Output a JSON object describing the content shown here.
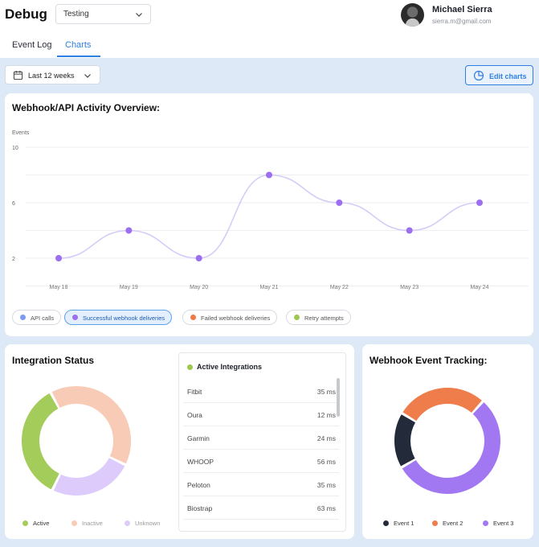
{
  "header": {
    "app_title": "Debug",
    "environment": "Testing",
    "user": {
      "name": "Michael Sierra",
      "email": "sierra.m@gmail.com"
    }
  },
  "tabs": [
    {
      "label": "Event Log",
      "active": false
    },
    {
      "label": "Charts",
      "active": true
    }
  ],
  "toolbar": {
    "date_range": "Last 12 weeks",
    "edit_charts_label": "Edit charts"
  },
  "activity_card": {
    "title": "Webhook/API Activity Overview:",
    "legend": [
      {
        "label": "API calls",
        "color": "#7c9cf0",
        "active": false
      },
      {
        "label": "Successful webhook deliveries",
        "color": "#9b6ff0",
        "active": true
      },
      {
        "label": "Failed webhook deliveries",
        "color": "#ef7a45",
        "active": false
      },
      {
        "label": "Retry attempts",
        "color": "#9bc84d",
        "active": false
      }
    ]
  },
  "integration_status": {
    "title": "Integration Status",
    "segments": [
      {
        "label": "Active",
        "value": 35,
        "color": "#a3cc5a"
      },
      {
        "label": "Inactive",
        "value": 40,
        "color": "#f7cbb6"
      },
      {
        "label": "Unknown",
        "value": 25,
        "color": "#dccbfb"
      }
    ],
    "active_integrations": {
      "header": "Active Integrations",
      "rows": [
        {
          "name": "Fitbit",
          "latency": "35 ms"
        },
        {
          "name": "Oura",
          "latency": "12 ms"
        },
        {
          "name": "Garmin",
          "latency": "24 ms"
        },
        {
          "name": "WHOOP",
          "latency": "56 ms"
        },
        {
          "name": "Peloton",
          "latency": "35 ms"
        },
        {
          "name": "Biostrap",
          "latency": "63 ms"
        }
      ]
    }
  },
  "event_tracking": {
    "title": "Webhook Event Tracking:",
    "segments": [
      {
        "label": "Event 1",
        "value": 17,
        "color": "#232a3a"
      },
      {
        "label": "Event 2",
        "value": 28,
        "color": "#ee7d4b"
      },
      {
        "label": "Event 3",
        "value": 55,
        "color": "#a277f2"
      }
    ]
  },
  "chart_data": {
    "type": "line",
    "title": "Webhook/API Activity Overview:",
    "ylabel": "Events",
    "xlabel": "",
    "categories": [
      "May 18",
      "May 19",
      "May 20",
      "May 21",
      "May 22",
      "May 23",
      "May 24"
    ],
    "y_ticks": [
      2,
      6,
      10
    ],
    "ylim": [
      0,
      10
    ],
    "grid": true,
    "series": [
      {
        "name": "Successful webhook deliveries",
        "values": [
          2,
          4,
          2,
          8,
          6,
          4,
          6
        ],
        "color": "#9b6ff0"
      }
    ]
  }
}
